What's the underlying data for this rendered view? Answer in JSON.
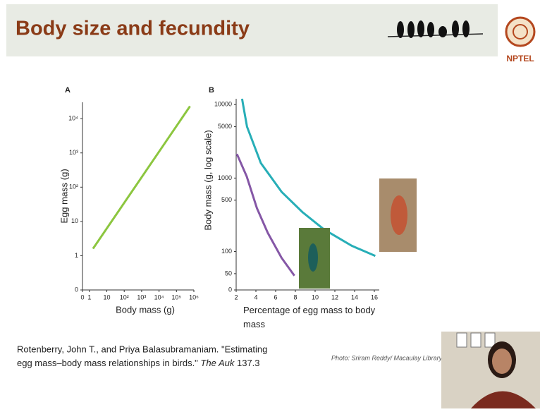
{
  "header": {
    "title": "Body size and fecundity",
    "logo": "NPTEL"
  },
  "chart_data": [
    {
      "type": "line",
      "panel": "A",
      "x_label": "Body mass (g)",
      "y_label": "Egg mass (g)",
      "xscale": "log",
      "yscale": "log",
      "xlim": [
        0.4,
        1000000
      ],
      "ylim": [
        0.1,
        30000
      ],
      "xticks": [
        {
          "value": 0.4,
          "label": "0"
        },
        1,
        10,
        {
          "value": 100,
          "label": "10²"
        },
        {
          "value": 1000,
          "label": "10³"
        },
        {
          "value": 10000,
          "label": "10⁴"
        },
        {
          "value": 100000,
          "label": "10⁵"
        },
        {
          "value": 1000000,
          "label": "10⁶"
        }
      ],
      "yticks": [
        {
          "value": 0.1,
          "label": "0"
        },
        1,
        10,
        {
          "value": 100,
          "label": "10²"
        },
        {
          "value": 1000,
          "label": "10³"
        },
        {
          "value": 10000,
          "label": "10⁴"
        }
      ],
      "series": [
        {
          "color": "#8cc63f",
          "x": [
            1.6,
            600000
          ],
          "values": [
            1.6,
            23000
          ]
        }
      ]
    },
    {
      "type": "line",
      "panel": "B",
      "x_label": "Percentage of egg mass to body mass",
      "y_label": "Body mass (g, log scale)",
      "xscale": "linear",
      "yscale": "log",
      "xlim": [
        2,
        16.5
      ],
      "ylim": [
        30,
        12000
      ],
      "xticks": [
        2,
        4,
        6,
        8,
        10,
        12,
        14,
        16
      ],
      "yticks": [
        {
          "value": 30,
          "label": "0"
        },
        50,
        100,
        500,
        1000,
        5000,
        10000
      ],
      "series": [
        {
          "color": "#27aeb7",
          "x": [
            2.6,
            2.7,
            3.1,
            4.5,
            6.6,
            8.7,
            10.9,
            13.7,
            16.1
          ],
          "values": [
            12000,
            10000,
            5000,
            1600,
            650,
            345,
            200,
            120,
            87
          ]
        },
        {
          "color": "#8557a6",
          "x": [
            2.07,
            3.07,
            4.1,
            5.2,
            6.6,
            7.9
          ],
          "values": [
            2130,
            1050,
            390,
            180,
            82,
            47
          ]
        }
      ]
    }
  ],
  "citation": {
    "authors": "Rotenberry, John T., and Priya Balasubramaniam. \"Estimating",
    "title": "egg mass–body mass relationships in birds.\"",
    "journal": "The Auk",
    "volume": "137.3"
  },
  "photo_credit": "Photo: Sriram Reddy/ Macaulay Library a"
}
